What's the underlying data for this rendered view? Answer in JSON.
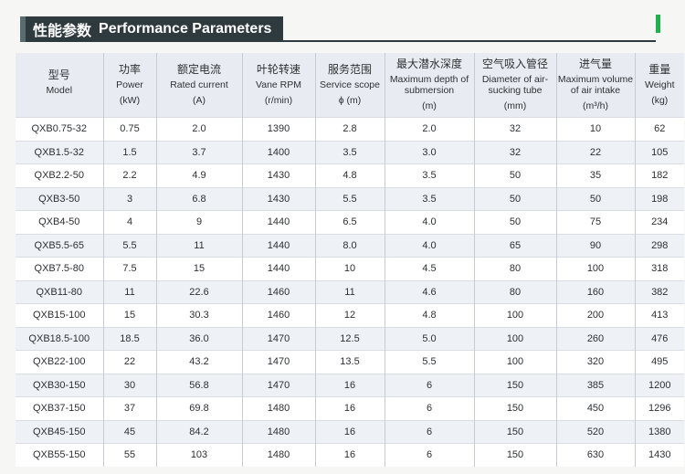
{
  "title": {
    "cn": "性能参数",
    "en": "Performance Parameters"
  },
  "columns": [
    {
      "cn": "型号",
      "en": "Model",
      "unit": ""
    },
    {
      "cn": "功率",
      "en": "Power",
      "unit": "(kW)"
    },
    {
      "cn": "额定电流",
      "en": "Rated current",
      "unit": "(A)"
    },
    {
      "cn": "叶轮转速",
      "en": "Vane RPM",
      "unit": "(r/min)"
    },
    {
      "cn": "服务范围",
      "en": "Service scope",
      "unit": "ϕ (m)"
    },
    {
      "cn": "最大潜水深度",
      "en": "Maximum depth of submersion",
      "unit": "(m)"
    },
    {
      "cn": "空气吸入管径",
      "en": "Diameter of air-sucking tube",
      "unit": "(mm)"
    },
    {
      "cn": "进气量",
      "en": "Maximum volume of air intake",
      "unit": "(m³/h)"
    },
    {
      "cn": "重量",
      "en": "Weight",
      "unit": "(kg)"
    }
  ],
  "rows": [
    [
      "QXB0.75-32",
      "0.75",
      "2.0",
      "1390",
      "2.8",
      "2.0",
      "32",
      "10",
      "62"
    ],
    [
      "QXB1.5-32",
      "1.5",
      "3.7",
      "1400",
      "3.5",
      "3.0",
      "32",
      "22",
      "105"
    ],
    [
      "QXB2.2-50",
      "2.2",
      "4.9",
      "1430",
      "4.8",
      "3.5",
      "50",
      "35",
      "182"
    ],
    [
      "QXB3-50",
      "3",
      "6.8",
      "1430",
      "5.5",
      "3.5",
      "50",
      "50",
      "198"
    ],
    [
      "QXB4-50",
      "4",
      "9",
      "1440",
      "6.5",
      "4.0",
      "50",
      "75",
      "234"
    ],
    [
      "QXB5.5-65",
      "5.5",
      "11",
      "1440",
      "8.0",
      "4.0",
      "65",
      "90",
      "298"
    ],
    [
      "QXB7.5-80",
      "7.5",
      "15",
      "1440",
      "10",
      "4.5",
      "80",
      "100",
      "318"
    ],
    [
      "QXB11-80",
      "11",
      "22.6",
      "1460",
      "11",
      "4.6",
      "80",
      "160",
      "382"
    ],
    [
      "QXB15-100",
      "15",
      "30.3",
      "1460",
      "12",
      "4.8",
      "100",
      "200",
      "413"
    ],
    [
      "QXB18.5-100",
      "18.5",
      "36.0",
      "1470",
      "12.5",
      "5.0",
      "100",
      "260",
      "476"
    ],
    [
      "QXB22-100",
      "22",
      "43.2",
      "1470",
      "13.5",
      "5.5",
      "100",
      "320",
      "495"
    ],
    [
      "QXB30-150",
      "30",
      "56.8",
      "1470",
      "16",
      "6",
      "150",
      "385",
      "1200"
    ],
    [
      "QXB37-150",
      "37",
      "69.8",
      "1480",
      "16",
      "6",
      "150",
      "450",
      "1296"
    ],
    [
      "QXB45-150",
      "45",
      "84.2",
      "1480",
      "16",
      "6",
      "150",
      "520",
      "1380"
    ],
    [
      "QXB55-150",
      "55",
      "103",
      "1480",
      "16",
      "6",
      "150",
      "630",
      "1430"
    ]
  ],
  "colors": {
    "title_bg": "#2f3a3f",
    "accent": "#1fb24a",
    "header_bg": "#e8ecf2",
    "row_alt": "#eef1f5"
  }
}
